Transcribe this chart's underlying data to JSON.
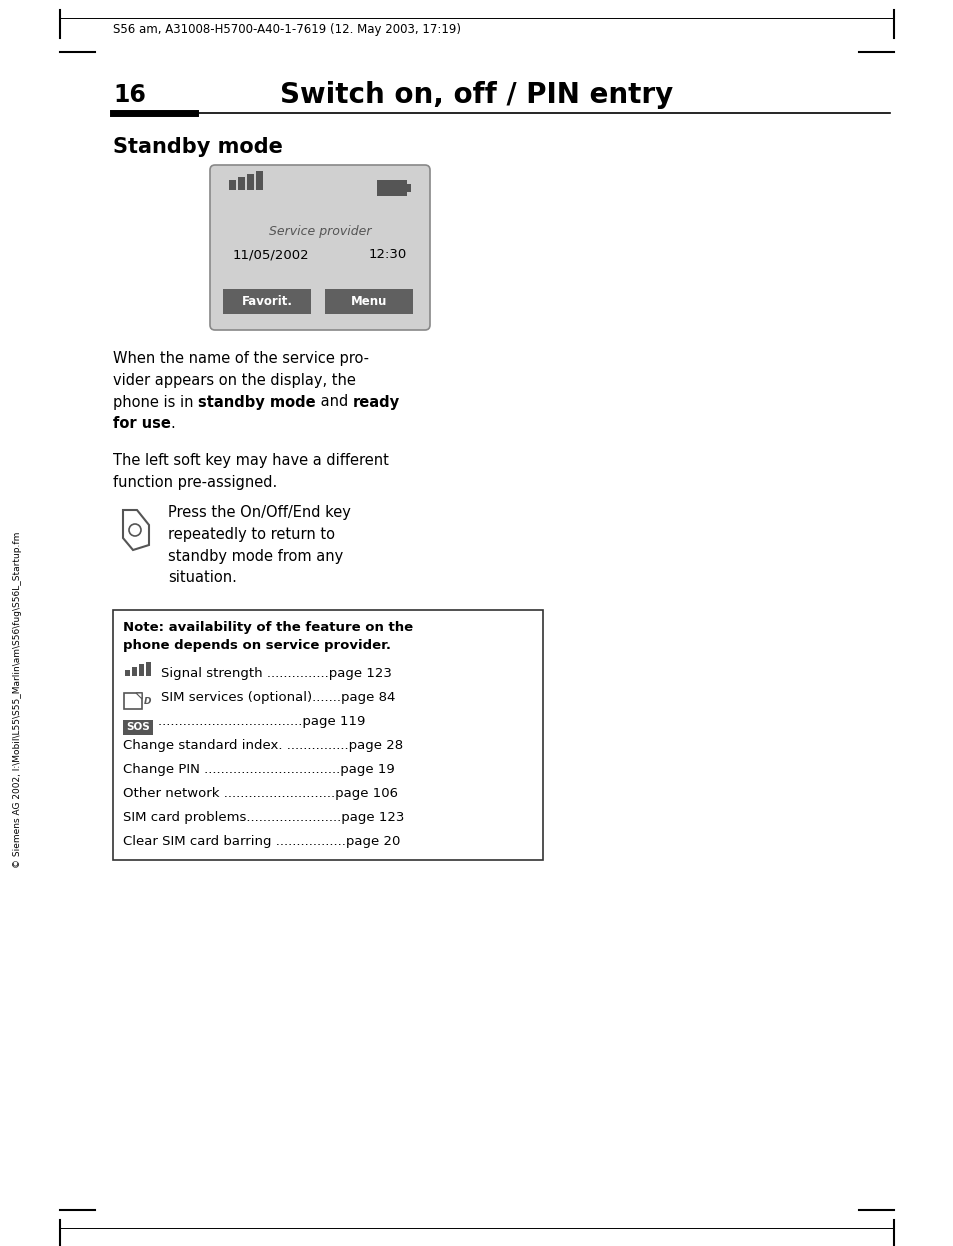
{
  "bg_color": "#ffffff",
  "page_width": 9.54,
  "page_height": 12.46,
  "header_text": "S56 am, A31008-H5700-A40-1-7619 (12. May 2003, 17:19)",
  "page_num": "16",
  "chapter_title": "Switch on, off / PIN entry",
  "section_title": "Standby mode",
  "sidebar_text": "© Siemens AG 2002, I:\\Mobil\\L55\\S55_Marlin\\am\\S56\\fug\\S56L_Startup.fm",
  "colors": {
    "black": "#000000",
    "dark_gray": "#555555",
    "mid_gray": "#888888",
    "light_gray": "#cccccc",
    "phone_bg": "#d0d0d0",
    "phone_border": "#888888",
    "button_bg": "#606060",
    "button_text": "#ffffff",
    "signal_bar": "#555555",
    "sos_bg": "#555555",
    "note_border": "#333333",
    "white": "#ffffff"
  }
}
